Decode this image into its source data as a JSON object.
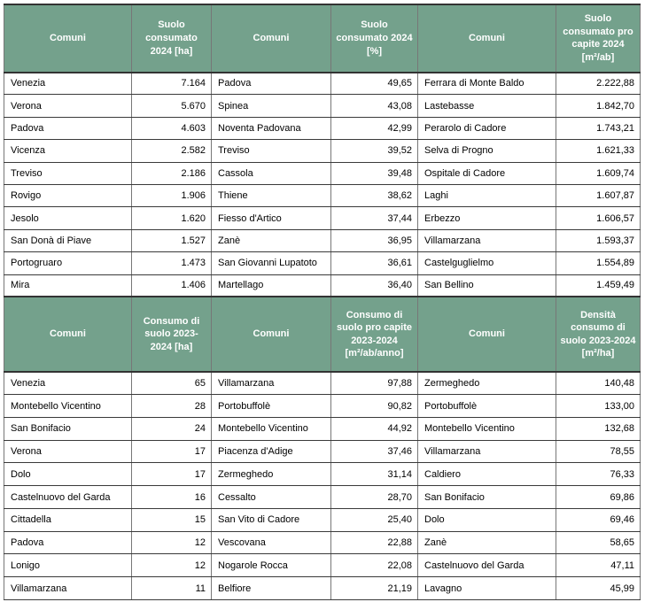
{
  "colors": {
    "header_background": "#74A18C",
    "header_text": "#FFFFFF",
    "cell_text": "#000000",
    "horizontal_border": "#3A3A3A",
    "vertical_border": "#777777"
  },
  "sections": [
    {
      "headers": [
        "Comuni",
        "Suolo\nconsumato\n2024 [ha]",
        "Comuni",
        "Suolo\nconsumato 2024\n[%]",
        "Comuni",
        "Suolo\nconsumato pro\ncapite 2024\n[m²/ab]"
      ],
      "rows": [
        [
          "Venezia",
          "7.164",
          "Padova",
          "49,65",
          "Ferrara di Monte Baldo",
          "2.222,88"
        ],
        [
          "Verona",
          "5.670",
          "Spinea",
          "43,08",
          "Lastebasse",
          "1.842,70"
        ],
        [
          "Padova",
          "4.603",
          "Noventa Padovana",
          "42,99",
          "Perarolo di Cadore",
          "1.743,21"
        ],
        [
          "Vicenza",
          "2.582",
          "Treviso",
          "39,52",
          "Selva di Progno",
          "1.621,33"
        ],
        [
          "Treviso",
          "2.186",
          "Cassola",
          "39,48",
          "Ospitale di Cadore",
          "1.609,74"
        ],
        [
          "Rovigo",
          "1.906",
          "Thiene",
          "38,62",
          "Laghi",
          "1.607,87"
        ],
        [
          "Jesolo",
          "1.620",
          "Fiesso d'Artico",
          "37,44",
          "Erbezzo",
          "1.606,57"
        ],
        [
          "San Donà di Piave",
          "1.527",
          "Zanè",
          "36,95",
          "Villamarzana",
          "1.593,37"
        ],
        [
          "Portogruaro",
          "1.473",
          "San Giovanni Lupatoto",
          "36,61",
          "Castelguglielmo",
          "1.554,89"
        ],
        [
          "Mira",
          "1.406",
          "Martellago",
          "36,40",
          "San Bellino",
          "1.459,49"
        ]
      ]
    },
    {
      "headers": [
        "Comuni",
        "Consumo di\nsuolo 2023-\n2024 [ha]",
        "Comuni",
        "Consumo di\nsuolo pro capite\n2023-2024\n[m²/ab/anno]",
        "Comuni",
        "Densità\nconsumo di\nsuolo 2023-2024\n[m²/ha]"
      ],
      "rows": [
        [
          "Venezia",
          "65",
          "Villamarzana",
          "97,88",
          "Zermeghedo",
          "140,48"
        ],
        [
          "Montebello Vicentino",
          "28",
          "Portobuffolè",
          "90,82",
          "Portobuffolè",
          "133,00"
        ],
        [
          "San Bonifacio",
          "24",
          "Montebello Vicentino",
          "44,92",
          "Montebello Vicentino",
          "132,68"
        ],
        [
          "Verona",
          "17",
          "Piacenza d'Adige",
          "37,46",
          "Villamarzana",
          "78,55"
        ],
        [
          "Dolo",
          "17",
          "Zermeghedo",
          "31,14",
          "Caldiero",
          "76,33"
        ],
        [
          "Castelnuovo del Garda",
          "16",
          "Cessalto",
          "28,70",
          "San Bonifacio",
          "69,86"
        ],
        [
          "Cittadella",
          "15",
          "San Vito di Cadore",
          "25,40",
          "Dolo",
          "69,46"
        ],
        [
          "Padova",
          "12",
          "Vescovana",
          "22,88",
          "Zanè",
          "58,65"
        ],
        [
          "Lonigo",
          "12",
          "Nogarole Rocca",
          "22,08",
          "Castelnuovo del Garda",
          "47,11"
        ],
        [
          "Villamarzana",
          "11",
          "Belfiore",
          "21,19",
          "Lavagno",
          "45,99"
        ]
      ]
    }
  ]
}
